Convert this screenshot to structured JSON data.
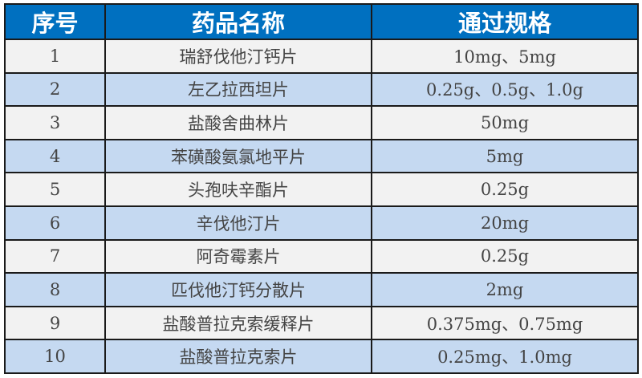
{
  "colors": {
    "header": "#0070c0",
    "row_odd": "#f2f2f2",
    "row_even": "#c5d9f1"
  },
  "headers": [
    "序号",
    "药品名称",
    "通过规格"
  ],
  "rows": [
    [
      "1",
      "瑞舒伐他汀钙片",
      "10mg、5mg"
    ],
    [
      "2",
      "左乙拉西坦片",
      "0.25g、0.5g、1.0g"
    ],
    [
      "3",
      "盐酸舍曲林片",
      "50mg"
    ],
    [
      "4",
      "苯磺酸氨氯地平片",
      "5mg"
    ],
    [
      "5",
      "头孢呋辛酯片",
      "0.25g"
    ],
    [
      "6",
      "辛伐他汀片",
      "20mg"
    ],
    [
      "7",
      "阿奇霉素片",
      "0.25g"
    ],
    [
      "8",
      "匹伐他汀钙分散片",
      "2mg"
    ],
    [
      "9",
      "盐酸普拉克索缓释片",
      "0.375mg、0.75mg"
    ],
    [
      "10",
      "盐酸普拉克索片",
      "0.25mg、1.0mg"
    ]
  ]
}
